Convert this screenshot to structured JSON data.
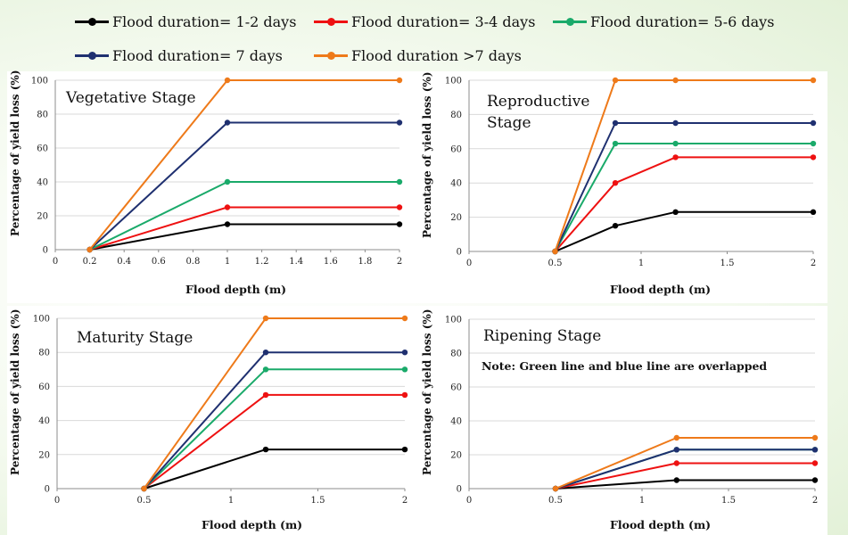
{
  "legend": {
    "items": [
      {
        "label": "Flood duration= 1-2 days",
        "color": "#000000"
      },
      {
        "label": "Flood duration= 3-4 days",
        "color": "#ee1111"
      },
      {
        "label": "Flood duration= 5-6 days",
        "color": "#1aaa6a"
      },
      {
        "label": "Flood duration= 7 days",
        "color": "#1f3070"
      },
      {
        "label": "Flood duration >7 days",
        "color": "#ee7a1a"
      }
    ]
  },
  "chart_data": [
    {
      "type": "line",
      "title": "Vegetative Stage",
      "xlabel": "Flood depth (m)",
      "ylabel": "Percentage of yield loss (%)",
      "xlim": [
        0,
        2
      ],
      "ylim": [
        0,
        100
      ],
      "xticks": [
        "0",
        "0.2",
        "0.4",
        "0.6",
        "0.8",
        "1",
        "1.2",
        "1.4",
        "1.6",
        "1.8",
        "2"
      ],
      "yticks": [
        "0",
        "20",
        "40",
        "60",
        "80",
        "100"
      ],
      "grid": "horizontal",
      "series": [
        {
          "name": "Flood duration= 1-2 days",
          "x": [
            0.2,
            1,
            2
          ],
          "y": [
            0,
            15,
            15
          ]
        },
        {
          "name": "Flood duration= 3-4 days",
          "x": [
            0.2,
            1,
            2
          ],
          "y": [
            0,
            25,
            25
          ]
        },
        {
          "name": "Flood duration= 5-6 days",
          "x": [
            0.2,
            1,
            2
          ],
          "y": [
            0,
            40,
            40
          ]
        },
        {
          "name": "Flood duration= 7 days",
          "x": [
            0.2,
            1,
            2
          ],
          "y": [
            0,
            75,
            75
          ]
        },
        {
          "name": "Flood duration >7 days",
          "x": [
            0.2,
            1,
            2
          ],
          "y": [
            0,
            100,
            100
          ]
        }
      ]
    },
    {
      "type": "line",
      "title": "Reproductive Stage",
      "title_lines": [
        "Reproductive",
        "Stage"
      ],
      "xlabel": "Flood depth (m)",
      "ylabel": "Percentage of yield loss (%)",
      "xlim": [
        0,
        2
      ],
      "ylim": [
        0,
        100
      ],
      "xticks": [
        "0",
        "0.5",
        "1",
        "1.5",
        "2"
      ],
      "yticks": [
        "0",
        "20",
        "40",
        "60",
        "80",
        "100"
      ],
      "grid": "horizontal",
      "series": [
        {
          "name": "Flood duration= 1-2 days",
          "x": [
            0.5,
            0.85,
            1.2,
            2
          ],
          "y": [
            0,
            15,
            23,
            23
          ]
        },
        {
          "name": "Flood duration= 3-4 days",
          "x": [
            0.5,
            0.85,
            1.2,
            2
          ],
          "y": [
            0,
            40,
            55,
            55
          ]
        },
        {
          "name": "Flood duration= 5-6 days",
          "x": [
            0.5,
            0.85,
            1.2,
            2
          ],
          "y": [
            0,
            63,
            63,
            63
          ]
        },
        {
          "name": "Flood duration= 7 days",
          "x": [
            0.5,
            0.85,
            1.2,
            2
          ],
          "y": [
            0,
            75,
            75,
            75
          ]
        },
        {
          "name": "Flood duration >7 days",
          "x": [
            0.5,
            0.85,
            1.2,
            2
          ],
          "y": [
            0,
            100,
            100,
            100
          ]
        }
      ]
    },
    {
      "type": "line",
      "title": "Maturity Stage",
      "xlabel": "Flood depth (m)",
      "ylabel": "Percentage of yield loss (%)",
      "xlim": [
        0,
        2
      ],
      "ylim": [
        0,
        100
      ],
      "xticks": [
        "0",
        "0.5",
        "1",
        "1.5",
        "2"
      ],
      "yticks": [
        "0",
        "20",
        "40",
        "60",
        "80",
        "100"
      ],
      "grid": "horizontal",
      "series": [
        {
          "name": "Flood duration= 1-2 days",
          "x": [
            0.5,
            1.2,
            2
          ],
          "y": [
            0,
            23,
            23
          ]
        },
        {
          "name": "Flood duration= 3-4 days",
          "x": [
            0.5,
            1.2,
            2
          ],
          "y": [
            0,
            55,
            55
          ]
        },
        {
          "name": "Flood duration= 5-6 days",
          "x": [
            0.5,
            1.2,
            2
          ],
          "y": [
            0,
            70,
            70
          ]
        },
        {
          "name": "Flood duration= 7 days",
          "x": [
            0.5,
            1.2,
            2
          ],
          "y": [
            0,
            80,
            80
          ]
        },
        {
          "name": "Flood duration >7 days",
          "x": [
            0.5,
            1.2,
            2
          ],
          "y": [
            0,
            100,
            100
          ]
        }
      ]
    },
    {
      "type": "line",
      "title": "Ripening Stage",
      "note": "Note: Green line and blue line are overlapped",
      "xlabel": "Flood depth (m)",
      "ylabel": "Percentage of yield loss (%)",
      "xlim": [
        0,
        2
      ],
      "ylim": [
        0,
        100
      ],
      "xticks": [
        "0",
        "0.5",
        "1",
        "1.5",
        "2"
      ],
      "yticks": [
        "0",
        "20",
        "40",
        "60",
        "80",
        "100"
      ],
      "grid": "horizontal",
      "series": [
        {
          "name": "Flood duration= 1-2 days",
          "x": [
            0.5,
            1.2,
            2
          ],
          "y": [
            0,
            5,
            5
          ]
        },
        {
          "name": "Flood duration= 3-4 days",
          "x": [
            0.5,
            1.2,
            2
          ],
          "y": [
            0,
            15,
            15
          ]
        },
        {
          "name": "Flood duration= 5-6 days",
          "x": [
            0.5,
            1.2,
            2
          ],
          "y": [
            0,
            23,
            23
          ]
        },
        {
          "name": "Flood duration= 7 days",
          "x": [
            0.5,
            1.2,
            2
          ],
          "y": [
            0,
            23,
            23
          ]
        },
        {
          "name": "Flood duration >7 days",
          "x": [
            0.5,
            1.2,
            2
          ],
          "y": [
            0,
            30,
            30
          ]
        }
      ]
    }
  ]
}
